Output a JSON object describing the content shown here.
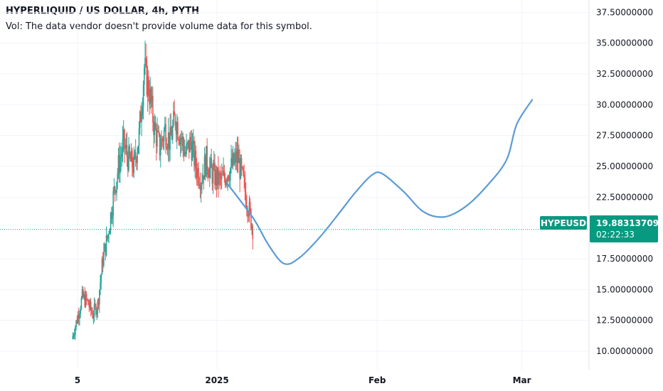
{
  "header": {
    "title": "HYPERLIQUID / US DOLLAR, 4h, PYTH",
    "volume_note": "Vol: The data vendor doesn't provide volume data for this symbol."
  },
  "price_tag": {
    "symbol": "HYPEUSD",
    "price": "19.88313709",
    "countdown": "02:22:33"
  },
  "colors": {
    "up": "#26a69a",
    "down": "#ef5350",
    "accent": "#089981",
    "projection": "#5b9bd5",
    "grid": "#f0f3fa"
  },
  "chart_data": {
    "type": "line",
    "description_axes": {
      "y_ticks": [
        "37.50000000",
        "35.00000000",
        "32.50000000",
        "30.00000000",
        "27.50000000",
        "25.00000000",
        "22.50000000",
        "17.50000000",
        "15.00000000",
        "12.50000000",
        "10.00000000"
      ],
      "y_tick_values": [
        37.5,
        35,
        32.5,
        30,
        27.5,
        25,
        22.5,
        17.5,
        15,
        12.5,
        10
      ],
      "x_ticks": [
        "5",
        "2025",
        "Feb",
        "Mar"
      ],
      "x_tick_dates": [
        "2024-12-05",
        "2025-01-01",
        "2025-02-01",
        "2025-03-01"
      ]
    },
    "ylim": [
      8.5,
      38.5
    ],
    "xlim": [
      "2024-11-20",
      "2025-03-14"
    ],
    "grid": true,
    "last_price": 19.88313709,
    "price_path": [
      [
        "2024-12-04",
        11.0
      ],
      [
        "2024-12-05",
        12.6
      ],
      [
        "2024-12-06",
        14.4
      ],
      [
        "2024-12-07",
        14.0
      ],
      [
        "2024-12-08",
        13.0
      ],
      [
        "2024-12-09",
        13.8
      ],
      [
        "2024-12-10",
        17.5
      ],
      [
        "2024-12-11",
        19.5
      ],
      [
        "2024-12-12",
        22.5
      ],
      [
        "2024-12-13",
        25.0
      ],
      [
        "2024-12-14",
        26.8
      ],
      [
        "2024-12-15",
        25.5
      ],
      [
        "2024-12-16",
        25.0
      ],
      [
        "2024-12-17",
        27.5
      ],
      [
        "2024-12-18",
        33.0
      ],
      [
        "2024-12-19",
        31.0
      ],
      [
        "2024-12-20",
        28.0
      ],
      [
        "2024-12-21",
        26.5
      ],
      [
        "2024-12-22",
        28.0
      ],
      [
        "2024-12-23",
        27.0
      ],
      [
        "2024-12-24",
        29.0
      ],
      [
        "2024-12-25",
        27.5
      ],
      [
        "2024-12-26",
        26.0
      ],
      [
        "2024-12-27",
        27.0
      ],
      [
        "2024-12-28",
        25.0
      ],
      [
        "2024-12-29",
        24.0
      ],
      [
        "2024-12-30",
        25.5
      ],
      [
        "2024-12-31",
        24.5
      ],
      [
        "2025-01-01",
        24.0
      ],
      [
        "2025-01-02",
        23.8
      ],
      [
        "2025-01-03",
        24.5
      ],
      [
        "2025-01-04",
        25.0
      ],
      [
        "2025-01-05",
        25.8
      ],
      [
        "2025-01-06",
        24.0
      ],
      [
        "2025-01-07",
        22.0
      ],
      [
        "2025-01-08",
        20.0
      ]
    ],
    "projection": [
      [
        "2025-01-03",
        23.6
      ],
      [
        "2025-01-08",
        20.8
      ],
      [
        "2025-01-11",
        18.6
      ],
      [
        "2025-01-14",
        17.1
      ],
      [
        "2025-01-17",
        17.6
      ],
      [
        "2025-01-21",
        19.3
      ],
      [
        "2025-01-25",
        21.4
      ],
      [
        "2025-01-28",
        23.0
      ],
      [
        "2025-01-31",
        24.3
      ],
      [
        "2025-02-02",
        24.4
      ],
      [
        "2025-02-06",
        23.0
      ],
      [
        "2025-02-10",
        21.3
      ],
      [
        "2025-02-14",
        20.9
      ],
      [
        "2025-02-18",
        21.7
      ],
      [
        "2025-02-22",
        23.3
      ],
      [
        "2025-02-26",
        25.5
      ],
      [
        "2025-02-28",
        28.4
      ],
      [
        "2025-03-03",
        30.4
      ]
    ]
  }
}
